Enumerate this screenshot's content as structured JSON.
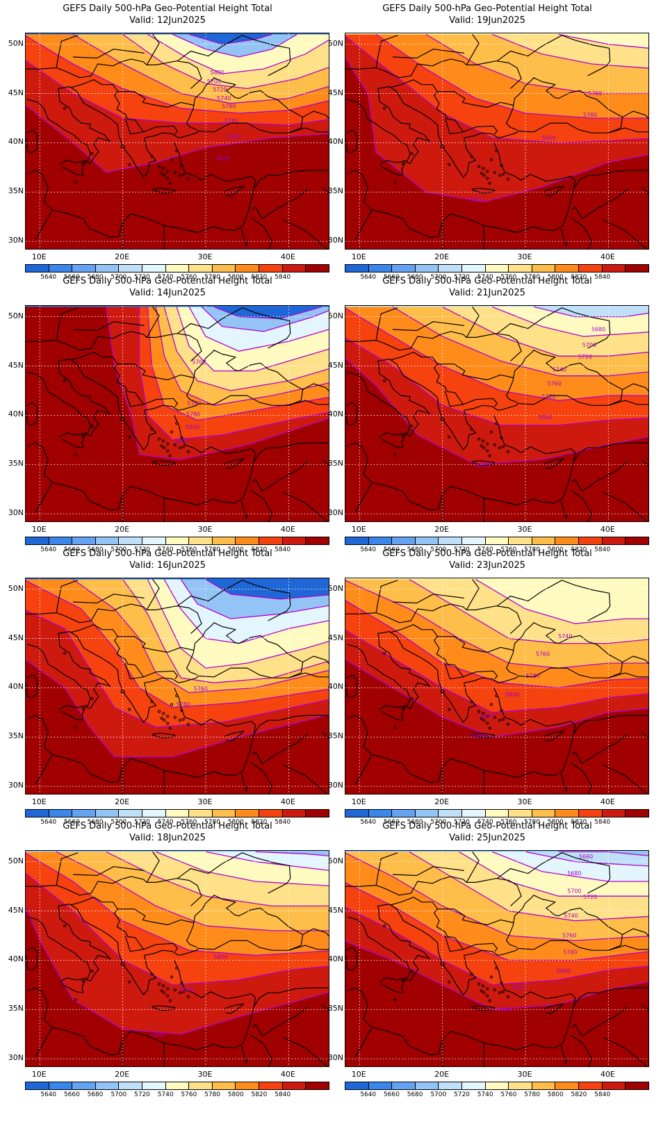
{
  "figure_title": "GEFS Daily 500-hPa Geo-Potential Height Total",
  "valid_prefix": "Valid:",
  "lat_labels": [
    "50N",
    "45N",
    "40N",
    "35N",
    "30N"
  ],
  "lon_labels": [
    "10E",
    "20E",
    "30E",
    "40E"
  ],
  "colorbar": {
    "labels": [
      "5640",
      "5660",
      "5680",
      "5700",
      "5720",
      "5740",
      "5760",
      "5780",
      "5800",
      "5820",
      "5840"
    ],
    "colors": [
      "#1f66d6",
      "#3a86ea",
      "#63a3f2",
      "#93c4f5",
      "#bfe0f8",
      "#e4f6fd",
      "#fffbc0",
      "#ffe189",
      "#ffbd4a",
      "#ff8c1a",
      "#f5420e",
      "#ce1a0e",
      "#a00000"
    ]
  },
  "panels": [
    {
      "valid": "12Jun2025",
      "contour_labels": [
        {
          "text": "5680",
          "lon": 31.4,
          "lat": 47.1
        },
        {
          "text": "5700",
          "lon": 31.0,
          "lat": 46.2
        },
        {
          "text": "5720",
          "lon": 31.7,
          "lat": 45.4
        },
        {
          "text": "5740",
          "lon": 32.2,
          "lat": 44.5
        },
        {
          "text": "5760",
          "lon": 32.8,
          "lat": 43.7
        },
        {
          "text": "5780",
          "lon": 33.1,
          "lat": 42.2
        },
        {
          "text": "5800",
          "lon": 33.4,
          "lat": 40.6
        },
        {
          "text": "5820",
          "lon": 32.1,
          "lat": 38.4
        }
      ]
    },
    {
      "valid": "19Jun2025",
      "contour_labels": [
        {
          "text": "5760",
          "lon": 38.4,
          "lat": 45.0
        },
        {
          "text": "5780",
          "lon": 37.8,
          "lat": 42.8
        },
        {
          "text": "5800",
          "lon": 32.8,
          "lat": 40.5
        },
        {
          "text": "5820",
          "lon": 24.2,
          "lat": 34.2
        }
      ]
    },
    {
      "valid": "14Jun2025",
      "contour_labels": [
        {
          "text": "5700",
          "lon": 29.2,
          "lat": 45.4
        },
        {
          "text": "5760",
          "lon": 28.6,
          "lat": 41.2
        },
        {
          "text": "5780",
          "lon": 28.5,
          "lat": 40.1
        },
        {
          "text": "5800",
          "lon": 28.4,
          "lat": 38.8
        },
        {
          "text": "5820",
          "lon": 27.1,
          "lat": 37.4
        }
      ]
    },
    {
      "valid": "21Jun2025",
      "contour_labels": [
        {
          "text": "5680",
          "lon": 38.8,
          "lat": 48.7
        },
        {
          "text": "5700",
          "lon": 37.7,
          "lat": 47.1
        },
        {
          "text": "5720",
          "lon": 37.2,
          "lat": 45.9
        },
        {
          "text": "5740",
          "lon": 34.1,
          "lat": 44.6
        },
        {
          "text": "5760",
          "lon": 33.5,
          "lat": 43.2
        },
        {
          "text": "5780",
          "lon": 32.8,
          "lat": 41.9
        },
        {
          "text": "5800",
          "lon": 32.4,
          "lat": 39.8
        },
        {
          "text": "5820",
          "lon": 25.0,
          "lat": 34.9
        }
      ]
    },
    {
      "valid": "16Jun2025",
      "contour_labels": [
        {
          "text": "5760",
          "lon": 29.4,
          "lat": 39.9
        },
        {
          "text": "5780",
          "lon": 27.3,
          "lat": 38.3
        }
      ]
    },
    {
      "valid": "23Jun2025",
      "contour_labels": [
        {
          "text": "5740",
          "lon": 34.8,
          "lat": 45.2
        },
        {
          "text": "5760",
          "lon": 32.1,
          "lat": 43.4
        },
        {
          "text": "5780",
          "lon": 30.9,
          "lat": 41.2
        },
        {
          "text": "5800",
          "lon": 28.4,
          "lat": 39.3
        },
        {
          "text": "5820",
          "lon": 25.4,
          "lat": 37.1
        },
        {
          "text": "5840",
          "lon": 24.3,
          "lat": 35.1
        }
      ]
    },
    {
      "valid": "18Jun2025",
      "contour_labels": [
        {
          "text": "5800",
          "lon": 31.8,
          "lat": 40.3
        },
        {
          "text": "5820",
          "lon": 27.7,
          "lat": 37.0
        },
        {
          "text": "5840",
          "lon": 24.3,
          "lat": 32.5
        }
      ]
    },
    {
      "valid": "25Jun2025",
      "contour_labels": [
        {
          "text": "5660",
          "lon": 37.3,
          "lat": 50.5
        },
        {
          "text": "5680",
          "lon": 35.9,
          "lat": 48.8
        },
        {
          "text": "5700",
          "lon": 35.9,
          "lat": 47.0
        },
        {
          "text": "5720",
          "lon": 37.8,
          "lat": 46.4
        },
        {
          "text": "5740",
          "lon": 35.5,
          "lat": 44.5
        },
        {
          "text": "5760",
          "lon": 35.3,
          "lat": 42.5
        },
        {
          "text": "5780",
          "lon": 35.4,
          "lat": 40.8
        },
        {
          "text": "5800",
          "lon": 34.6,
          "lat": 38.9
        },
        {
          "text": "5820",
          "lon": 29.2,
          "lat": 37.2
        },
        {
          "text": "5840",
          "lon": 27.5,
          "lat": 35.0
        }
      ]
    }
  ]
}
